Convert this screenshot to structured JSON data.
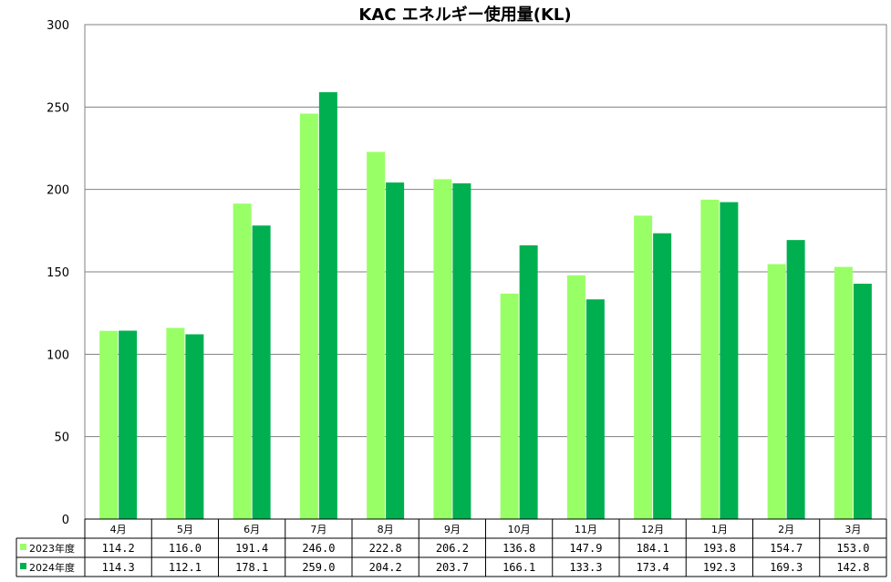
{
  "chart_data": {
    "type": "bar",
    "title": "KAC エネルギー使用量(KL)",
    "categories": [
      "4月",
      "5月",
      "6月",
      "7月",
      "8月",
      "9月",
      "10月",
      "11月",
      "12月",
      "1月",
      "2月",
      "3月"
    ],
    "ylim": [
      0,
      300
    ],
    "yticks": [
      "0",
      "50",
      "100",
      "150",
      "200",
      "250",
      "300"
    ],
    "grid": true,
    "legend": "data-table",
    "series": [
      {
        "name": "2023年度",
        "color": "#99ff66",
        "values": [
          114.2,
          116.0,
          191.4,
          246.0,
          222.8,
          206.2,
          136.8,
          147.9,
          184.1,
          193.8,
          154.7,
          153.0
        ],
        "labels": [
          "114.2",
          "116.0",
          "191.4",
          "246.0",
          "222.8",
          "206.2",
          "136.8",
          "147.9",
          "184.1",
          "193.8",
          "154.7",
          "153.0"
        ]
      },
      {
        "name": "2024年度",
        "color": "#00b050",
        "values": [
          114.3,
          112.1,
          178.1,
          259.0,
          204.2,
          203.7,
          166.1,
          133.3,
          173.4,
          192.3,
          169.3,
          142.8
        ],
        "labels": [
          "114.3",
          "112.1",
          "178.1",
          "259.0",
          "204.2",
          "203.7",
          "166.1",
          "133.3",
          "173.4",
          "192.3",
          "169.3",
          "142.8"
        ]
      }
    ]
  }
}
